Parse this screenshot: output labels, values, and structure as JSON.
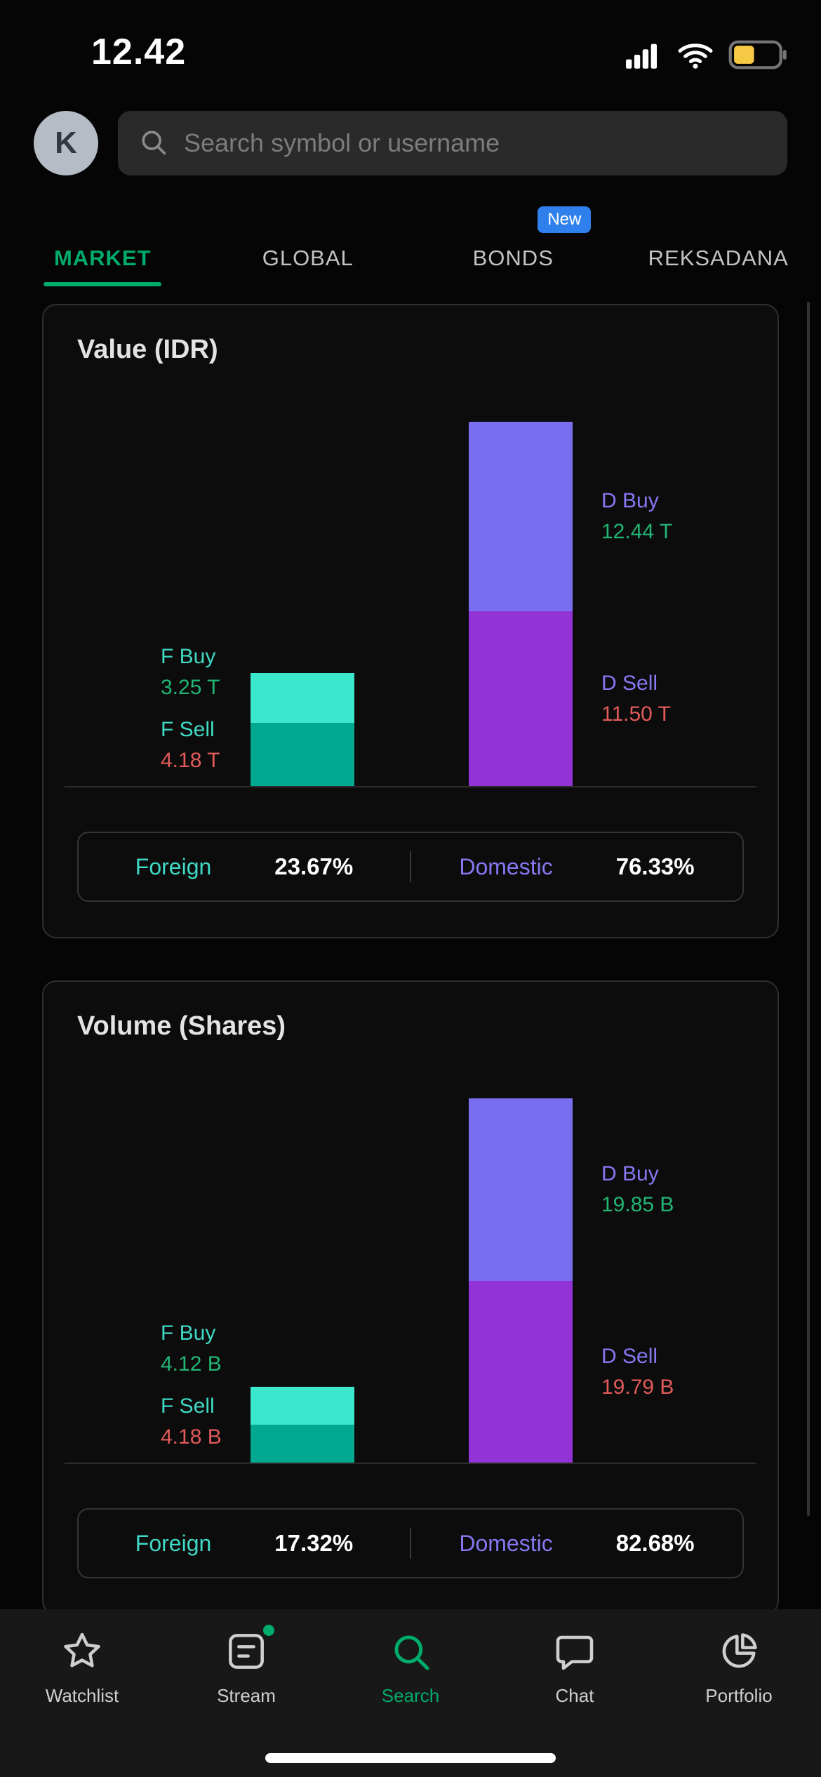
{
  "colors": {
    "accent": "#00ab6b",
    "teal-label": "#3fd9c5",
    "green-value": "#22b573",
    "red-value": "#e25a5a",
    "purple-label": "#8678f2",
    "fbuy": "#3be8cd",
    "fsell": "#00a98f",
    "dbuy": "#7a6ef0",
    "dsell": "#9233d6",
    "badge": "#2f80ed",
    "battery": "#f6c944"
  },
  "status_bar": {
    "time": "12.42"
  },
  "header": {
    "avatar_initial": "K",
    "search_placeholder": "Search symbol or username"
  },
  "tabs": [
    {
      "label": "MARKET",
      "active": true
    },
    {
      "label": "GLOBAL",
      "active": false
    },
    {
      "label": "BONDS",
      "badge": "New",
      "active": false
    },
    {
      "label": "REKSADANA",
      "active": false
    }
  ],
  "charts": [
    {
      "title": "Value (IDR)",
      "type": "bar",
      "foreign": {
        "buy_label": "F Buy",
        "buy_value_label": "3.25 T",
        "buy": 3.25,
        "sell_label": "F Sell",
        "sell_value_label": "4.18 T",
        "sell": 4.18
      },
      "domestic": {
        "buy_label": "D Buy",
        "buy_value_label": "12.44 T",
        "buy": 12.44,
        "sell_label": "D Sell",
        "sell_value_label": "11.50 T",
        "sell": 11.5
      },
      "summary": {
        "foreign_label": "Foreign",
        "foreign_pct": "23.67%",
        "domestic_label": "Domestic",
        "domestic_pct": "76.33%"
      }
    },
    {
      "title": "Volume (Shares)",
      "type": "bar",
      "foreign": {
        "buy_label": "F Buy",
        "buy_value_label": "4.12 B",
        "buy": 4.12,
        "sell_label": "F Sell",
        "sell_value_label": "4.18 B",
        "sell": 4.18
      },
      "domestic": {
        "buy_label": "D Buy",
        "buy_value_label": "19.85 B",
        "buy": 19.85,
        "sell_label": "D Sell",
        "sell_value_label": "19.79 B",
        "sell": 19.79
      },
      "summary": {
        "foreign_label": "Foreign",
        "foreign_pct": "17.32%",
        "domestic_label": "Domestic",
        "domestic_pct": "82.68%"
      }
    }
  ],
  "nav": [
    {
      "label": "Watchlist",
      "icon": "star",
      "active": false
    },
    {
      "label": "Stream",
      "icon": "stream",
      "active": false,
      "notification_dot": true
    },
    {
      "label": "Search",
      "icon": "search",
      "active": true
    },
    {
      "label": "Chat",
      "icon": "chat",
      "active": false
    },
    {
      "label": "Portfolio",
      "icon": "pie",
      "active": false
    }
  ]
}
